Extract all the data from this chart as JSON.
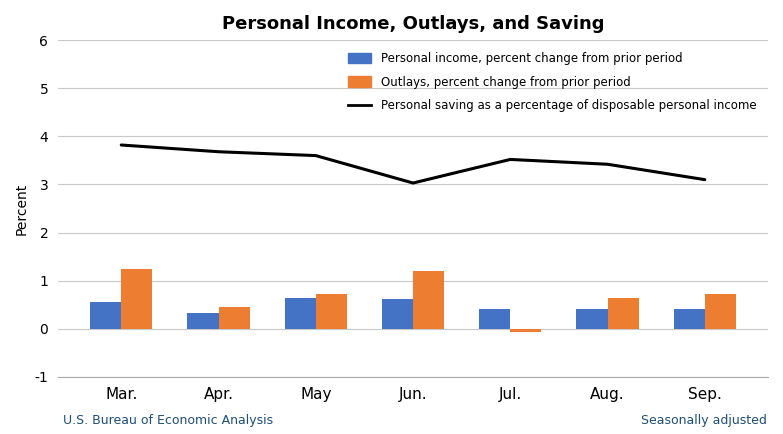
{
  "title": "Personal Income, Outlays, and Saving",
  "months": [
    "Mar.",
    "Apr.",
    "May",
    "Jun.",
    "Jul.",
    "Aug.",
    "Sep."
  ],
  "personal_income": [
    0.55,
    0.32,
    0.63,
    0.62,
    0.42,
    0.42,
    0.42
  ],
  "outlays": [
    1.25,
    0.45,
    0.72,
    1.2,
    -0.07,
    0.63,
    0.72
  ],
  "saving_rate": [
    3.82,
    3.68,
    3.6,
    3.03,
    3.52,
    3.42,
    3.1
  ],
  "bar_color_income": "#4472C4",
  "bar_color_outlays": "#ED7D31",
  "line_color_saving": "#000000",
  "ylabel": "Percent",
  "ylim": [
    -1,
    6
  ],
  "yticks": [
    -1,
    0,
    1,
    2,
    3,
    4,
    5,
    6
  ],
  "legend_income": "Personal income, percent change from prior period",
  "legend_outlays": "Outlays, percent change from prior period",
  "legend_saving": "Personal saving as a percentage of disposable personal income",
  "footnote_left": "U.S. Bureau of Economic Analysis",
  "footnote_right": "Seasonally adjusted",
  "title_fontsize": 13,
  "axis_fontsize": 10,
  "tick_fontsize": 10,
  "legend_fontsize": 8.5,
  "footnote_fontsize": 9,
  "bar_width": 0.32,
  "grid_color": "#C8C8C8",
  "background_color": "#FFFFFF",
  "footnote_color": "#1F4E79",
  "legend_text_color": "#595959"
}
